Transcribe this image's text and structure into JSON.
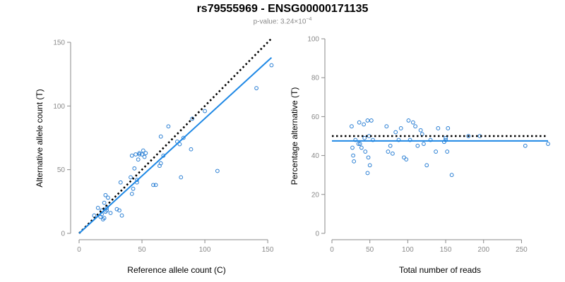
{
  "header": {
    "title": "rs79555969 - ENSG00000171135",
    "pvalue_prefix": "p-value: 3.24×10",
    "pvalue_exp": "−4"
  },
  "colors": {
    "points": "#2a7fd4",
    "fit": "#1e88e5",
    "reference": "#000000",
    "axis": "#8a8a8a"
  },
  "chart_data": [
    {
      "type": "scatter",
      "xlabel": "Reference allele count (C)",
      "ylabel": "Alternative allele count (T)",
      "xlim": [
        0,
        155
      ],
      "ylim": [
        0,
        150
      ],
      "xticks": [
        0,
        50,
        100,
        150
      ],
      "yticks": [
        0,
        50,
        100,
        150
      ],
      "grid": false,
      "points": {
        "x": [
          12,
          15,
          17,
          18,
          18,
          19,
          20,
          20,
          21,
          21,
          22,
          22,
          23,
          25,
          30,
          32,
          33,
          34,
          41,
          42,
          42,
          43,
          44,
          45,
          46,
          46,
          47,
          48,
          48,
          50,
          51,
          52,
          53,
          59,
          61,
          64,
          65,
          65,
          67,
          71,
          78,
          80,
          81,
          83,
          89,
          90,
          100,
          110,
          141,
          153
        ],
        "y": [
          14,
          20,
          13,
          15,
          18,
          11,
          12,
          24,
          17,
          30,
          18,
          20,
          28,
          16,
          19,
          18,
          40,
          14,
          44,
          61,
          31,
          35,
          51,
          62,
          40,
          42,
          58,
          62,
          63,
          62,
          65,
          60,
          63,
          38,
          38,
          53,
          55,
          76,
          61,
          84,
          72,
          70,
          44,
          75,
          66,
          90,
          96,
          49,
          114,
          132
        ]
      },
      "reference_line": {
        "style": "dotted",
        "slope": 1,
        "from": 0,
        "to": 153
      },
      "fit_line": {
        "x": [
          0,
          153
        ],
        "y": [
          0,
          138
        ]
      }
    },
    {
      "type": "scatter",
      "xlabel": "Total number of reads",
      "ylabel": "Percentage alternative (T)",
      "xlim": [
        0,
        285
      ],
      "ylim": [
        0,
        100
      ],
      "xticks": [
        0,
        50,
        100,
        150,
        200,
        250
      ],
      "yticks": [
        0,
        20,
        40,
        60,
        80,
        100
      ],
      "grid": false,
      "points": {
        "x": [
          26,
          27,
          28,
          29,
          31,
          35,
          36,
          37,
          39,
          42,
          43,
          44,
          47,
          47,
          48,
          49,
          50,
          52,
          54,
          72,
          74,
          77,
          80,
          84,
          88,
          91,
          95,
          98,
          101,
          103,
          107,
          110,
          113,
          117,
          119,
          121,
          125,
          130,
          137,
          140,
          148,
          150,
          150,
          152,
          153,
          158,
          180,
          195,
          255,
          285
        ],
        "y": [
          55,
          44,
          40,
          37,
          48,
          46,
          57,
          46,
          44,
          56,
          49,
          42,
          58,
          31,
          39,
          50,
          35,
          58,
          48,
          55,
          42,
          45,
          41,
          52,
          48,
          54,
          39,
          38,
          58,
          48,
          57,
          55,
          45,
          53,
          51,
          46,
          35,
          48,
          42,
          54,
          47,
          48,
          49,
          42,
          54,
          30,
          50,
          50,
          45,
          46
        ]
      },
      "reference_line": {
        "style": "dotted",
        "y": 50,
        "from": 0,
        "to": 285
      },
      "fit_line": {
        "x": [
          0,
          285
        ],
        "y": [
          47.5,
          47.5
        ]
      }
    }
  ]
}
